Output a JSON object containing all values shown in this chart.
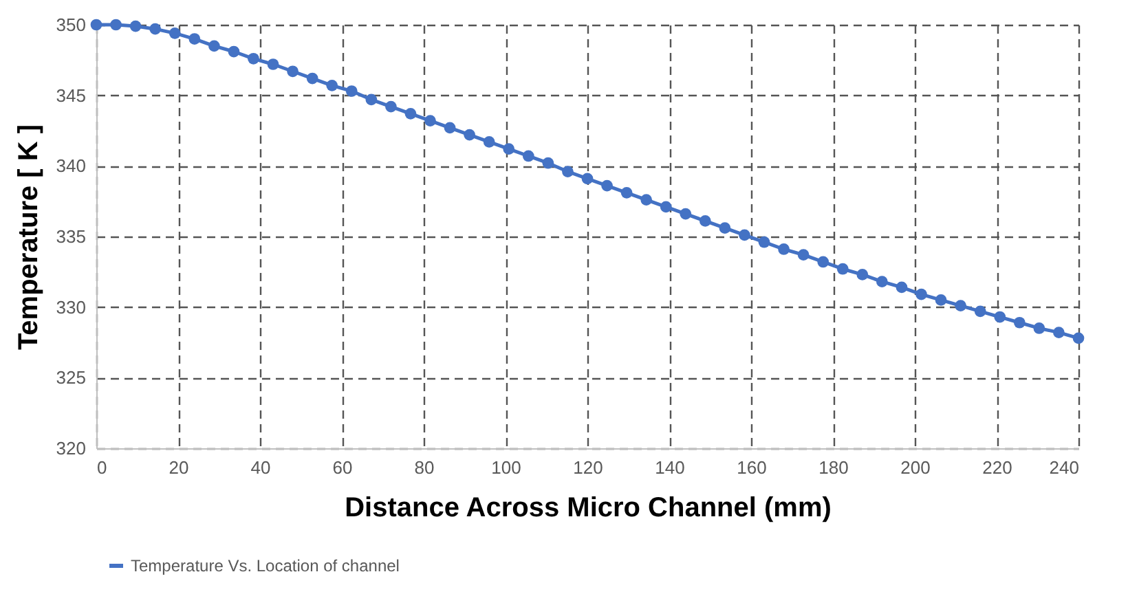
{
  "chart_data": {
    "type": "line",
    "xlabel": "Distance Across Micro Channel (mm)",
    "ylabel": "Temperature [ K ]",
    "x": [
      0,
      4.8,
      9.6,
      14.4,
      19.2,
      24,
      28.8,
      33.6,
      38.4,
      43.2,
      48,
      52.8,
      57.6,
      62.4,
      67.2,
      72,
      76.8,
      81.6,
      86.4,
      91.2,
      96,
      100.8,
      105.6,
      110.4,
      115.2,
      120,
      124.8,
      129.6,
      134.4,
      139.2,
      144,
      148.8,
      153.6,
      158.4,
      163.2,
      168,
      172.8,
      177.6,
      182.4,
      187.2,
      192,
      196.8,
      201.6,
      206.4,
      211.2,
      216,
      220.8,
      225.6,
      230.4,
      235.2,
      240
    ],
    "series": [
      {
        "name": "Temperature Vs. Location of channel",
        "color": "#4472c4",
        "values": [
          350,
          350,
          349.9,
          349.7,
          349.4,
          349,
          348.5,
          348.1,
          347.6,
          347.2,
          346.7,
          346.2,
          345.7,
          345.3,
          344.7,
          344.2,
          343.7,
          343.2,
          342.7,
          342.2,
          341.7,
          341.2,
          340.7,
          340.2,
          339.6,
          339.1,
          338.6,
          338.1,
          337.6,
          337.1,
          336.6,
          336.1,
          335.6,
          335.1,
          334.6,
          334.1,
          333.7,
          333.2,
          332.7,
          332.3,
          331.8,
          331.4,
          330.9,
          330.5,
          330.1,
          329.7,
          329.3,
          328.9,
          328.5,
          328.2,
          327.8
        ]
      }
    ],
    "xlim": [
      0,
      240
    ],
    "xticks": [
      0,
      20,
      40,
      60,
      80,
      100,
      120,
      140,
      160,
      180,
      200,
      220,
      240
    ],
    "ylim": [
      320,
      350
    ],
    "yticks": [
      320,
      325,
      330,
      335,
      340,
      345,
      350
    ],
    "grid": true,
    "legend": "bottom",
    "marker": "circle",
    "line_style": "solid"
  }
}
